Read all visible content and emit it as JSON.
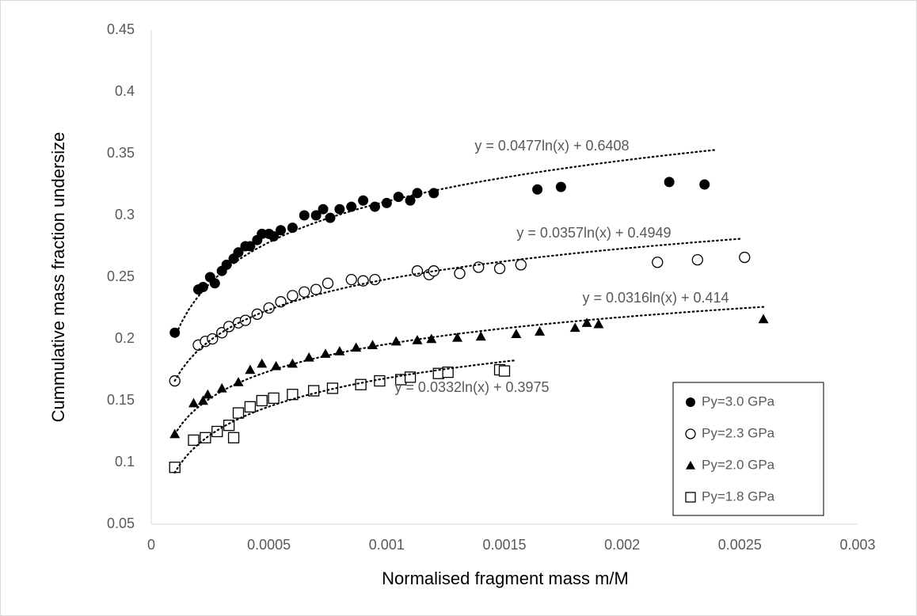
{
  "chart_data": {
    "type": "scatter",
    "x_label": "Normalised fragment mass m/M",
    "y_label": "Cummulative mass fraction undersize",
    "xlim": [
      0,
      0.003
    ],
    "xticks": [
      0,
      0.0005,
      0.001,
      0.0015,
      0.002,
      0.0025,
      0.003
    ],
    "ylim": [
      0.05,
      0.45
    ],
    "yticks": [
      0.05,
      0.1,
      0.15,
      0.2,
      0.25,
      0.3,
      0.35,
      0.4,
      0.45
    ],
    "grid": false,
    "legend": "bottom-right",
    "series": [
      {
        "name": "Py=3.0 GPa",
        "color": "#000000",
        "marker": "filled-circle",
        "x": [
          0.0001,
          0.0002,
          0.00022,
          0.00025,
          0.00027,
          0.0003,
          0.00032,
          0.00035,
          0.00037,
          0.0004,
          0.00042,
          0.00045,
          0.00047,
          0.0005,
          0.00052,
          0.00055,
          0.0006,
          0.00065,
          0.0007,
          0.00073,
          0.00076,
          0.0008,
          0.00085,
          0.0009,
          0.00095,
          0.001,
          0.00105,
          0.0011,
          0.00113,
          0.0012,
          0.00164,
          0.00174,
          0.0022,
          0.00235
        ],
        "values": [
          0.205,
          0.24,
          0.242,
          0.25,
          0.245,
          0.255,
          0.26,
          0.265,
          0.27,
          0.275,
          0.275,
          0.28,
          0.285,
          0.285,
          0.283,
          0.288,
          0.29,
          0.3,
          0.3,
          0.305,
          0.298,
          0.305,
          0.307,
          0.312,
          0.307,
          0.31,
          0.315,
          0.312,
          0.318,
          0.318,
          0.321,
          0.323,
          0.327,
          0.325
        ],
        "trendline": {
          "a": 0.0477,
          "b": 0.6408,
          "label": "y = 0.0477ln(x) + 0.6408",
          "x_range": [
            0.0001,
            0.0024
          ]
        }
      },
      {
        "name": "Py=2.3 GPa",
        "color": "#000000",
        "marker": "open-circle",
        "x": [
          0.0001,
          0.0002,
          0.00023,
          0.00026,
          0.0003,
          0.00033,
          0.00037,
          0.0004,
          0.00045,
          0.0005,
          0.00055,
          0.0006,
          0.00065,
          0.0007,
          0.00075,
          0.00085,
          0.0009,
          0.00095,
          0.00113,
          0.00118,
          0.0012,
          0.00131,
          0.00139,
          0.00148,
          0.00157,
          0.00215,
          0.00232,
          0.00252
        ],
        "values": [
          0.166,
          0.195,
          0.198,
          0.2,
          0.205,
          0.21,
          0.213,
          0.215,
          0.22,
          0.225,
          0.23,
          0.235,
          0.238,
          0.24,
          0.245,
          0.248,
          0.247,
          0.248,
          0.255,
          0.252,
          0.255,
          0.253,
          0.258,
          0.257,
          0.26,
          0.262,
          0.264,
          0.266
        ],
        "trendline": {
          "a": 0.0357,
          "b": 0.4949,
          "label": "y = 0.0357ln(x) + 0.4949",
          "x_range": [
            0.0001,
            0.0025
          ]
        }
      },
      {
        "name": "Py=2.0 GPa",
        "color": "#000000",
        "marker": "filled-triangle",
        "x": [
          0.0001,
          0.00018,
          0.00022,
          0.00024,
          0.0003,
          0.00037,
          0.00042,
          0.00047,
          0.00053,
          0.0006,
          0.00067,
          0.00074,
          0.0008,
          0.00087,
          0.00094,
          0.00104,
          0.00113,
          0.00119,
          0.0013,
          0.0014,
          0.00155,
          0.00165,
          0.0018,
          0.00185,
          0.0019,
          0.0026
        ],
        "values": [
          0.123,
          0.148,
          0.15,
          0.155,
          0.16,
          0.165,
          0.175,
          0.18,
          0.178,
          0.18,
          0.185,
          0.188,
          0.19,
          0.193,
          0.195,
          0.198,
          0.199,
          0.2,
          0.201,
          0.202,
          0.204,
          0.206,
          0.209,
          0.213,
          0.212,
          0.216
        ],
        "trendline": {
          "a": 0.0316,
          "b": 0.414,
          "label": "y = 0.0316ln(x) + 0.414",
          "x_range": [
            0.0001,
            0.0026
          ]
        }
      },
      {
        "name": "Py=1.8 GPa",
        "color": "#000000",
        "marker": "open-square",
        "x": [
          0.0001,
          0.00018,
          0.00023,
          0.00028,
          0.00033,
          0.00035,
          0.00037,
          0.00042,
          0.00047,
          0.00052,
          0.0006,
          0.00069,
          0.00077,
          0.00089,
          0.00097,
          0.00106,
          0.0011,
          0.00122,
          0.00126,
          0.00148,
          0.0015
        ],
        "values": [
          0.096,
          0.118,
          0.12,
          0.125,
          0.13,
          0.12,
          0.14,
          0.145,
          0.15,
          0.152,
          0.155,
          0.158,
          0.16,
          0.163,
          0.166,
          0.167,
          0.169,
          0.172,
          0.173,
          0.175,
          0.174
        ],
        "trendline": {
          "a": 0.0332,
          "b": 0.3975,
          "label": "y = 0.0332ln(x) + 0.3975",
          "x_range": [
            0.0001,
            0.00155
          ]
        }
      }
    ]
  }
}
